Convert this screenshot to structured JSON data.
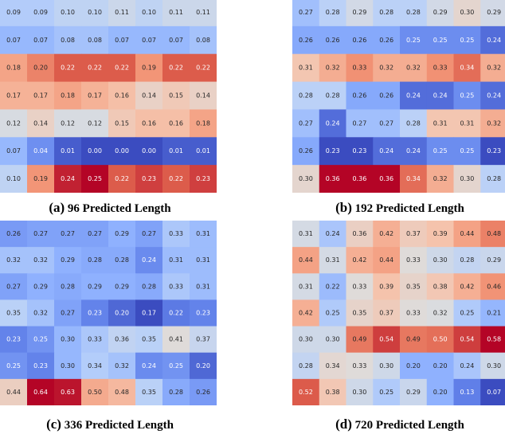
{
  "chart_data": [
    {
      "type": "heatmap",
      "caption_tag": "(a)",
      "caption_text": "96 Predicted Length",
      "values": [
        [
          0.09,
          0.09,
          0.1,
          0.1,
          0.11,
          0.1,
          0.11,
          0.11
        ],
        [
          0.07,
          0.07,
          0.08,
          0.08,
          0.07,
          0.07,
          0.07,
          0.08
        ],
        [
          0.18,
          0.2,
          0.22,
          0.22,
          0.22,
          0.19,
          0.22,
          0.22
        ],
        [
          0.17,
          0.17,
          0.18,
          0.17,
          0.16,
          0.14,
          0.15,
          0.14
        ],
        [
          0.12,
          0.14,
          0.12,
          0.12,
          0.15,
          0.16,
          0.16,
          0.18
        ],
        [
          0.07,
          0.04,
          0.01,
          0.0,
          0.0,
          0.0,
          0.01,
          0.01
        ],
        [
          0.1,
          0.19,
          0.24,
          0.25,
          0.22,
          0.23,
          0.22,
          0.23
        ]
      ]
    },
    {
      "type": "heatmap",
      "caption_tag": "(b)",
      "caption_text": "192 Predicted Length",
      "values": [
        [
          0.27,
          0.28,
          0.29,
          0.28,
          0.28,
          0.29,
          0.3,
          0.29
        ],
        [
          0.26,
          0.26,
          0.26,
          0.26,
          0.25,
          0.25,
          0.25,
          0.24
        ],
        [
          0.31,
          0.32,
          0.33,
          0.32,
          0.32,
          0.33,
          0.34,
          0.32
        ],
        [
          0.28,
          0.28,
          0.26,
          0.26,
          0.24,
          0.24,
          0.25,
          0.24
        ],
        [
          0.27,
          0.24,
          0.27,
          0.27,
          0.28,
          0.31,
          0.31,
          0.32
        ],
        [
          0.26,
          0.23,
          0.23,
          0.24,
          0.24,
          0.25,
          0.25,
          0.23
        ],
        [
          0.3,
          0.36,
          0.36,
          0.36,
          0.34,
          0.32,
          0.3,
          0.28
        ]
      ]
    },
    {
      "type": "heatmap",
      "caption_tag": "(c)",
      "caption_text": "336 Predicted Length",
      "values": [
        [
          0.26,
          0.27,
          0.27,
          0.27,
          0.29,
          0.27,
          0.33,
          0.31
        ],
        [
          0.32,
          0.32,
          0.29,
          0.28,
          0.28,
          0.24,
          0.31,
          0.31
        ],
        [
          0.27,
          0.29,
          0.28,
          0.29,
          0.29,
          0.28,
          0.33,
          0.31
        ],
        [
          0.35,
          0.32,
          0.27,
          0.23,
          0.2,
          0.17,
          0.22,
          0.23
        ],
        [
          0.23,
          0.25,
          0.3,
          0.33,
          0.36,
          0.35,
          0.41,
          0.37
        ],
        [
          0.25,
          0.23,
          0.3,
          0.34,
          0.32,
          0.24,
          0.25,
          0.2
        ],
        [
          0.44,
          0.64,
          0.63,
          0.5,
          0.48,
          0.35,
          0.28,
          0.26
        ]
      ]
    },
    {
      "type": "heatmap",
      "caption_tag": "(d)",
      "caption_text": "720 Predicted Length",
      "values": [
        [
          0.31,
          0.24,
          0.36,
          0.42,
          0.37,
          0.39,
          0.44,
          0.48
        ],
        [
          0.44,
          0.31,
          0.42,
          0.44,
          0.33,
          0.3,
          0.28,
          0.29
        ],
        [
          0.31,
          0.22,
          0.33,
          0.39,
          0.35,
          0.38,
          0.42,
          0.46
        ],
        [
          0.42,
          0.25,
          0.35,
          0.37,
          0.33,
          0.32,
          0.25,
          0.21
        ],
        [
          0.3,
          0.3,
          0.49,
          0.54,
          0.49,
          0.5,
          0.54,
          0.58
        ],
        [
          0.28,
          0.34,
          0.33,
          0.3,
          0.2,
          0.2,
          0.24,
          0.3
        ],
        [
          0.52,
          0.38,
          0.3,
          0.25,
          0.29,
          0.2,
          0.13,
          0.07
        ]
      ]
    }
  ]
}
